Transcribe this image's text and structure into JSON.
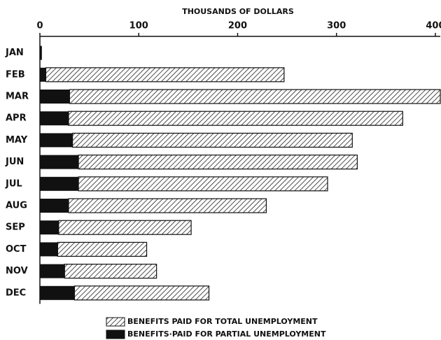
{
  "chart_data": {
    "type": "stacked-barh",
    "title": "THOUSANDS OF DOLLARS",
    "categories": [
      "JAN",
      "FEB",
      "MAR",
      "APR",
      "MAY",
      "JUN",
      "JUL",
      "AUG",
      "SEP",
      "OCT",
      "NOV",
      "DEC"
    ],
    "series": [
      {
        "name": "BENEFITS·PAID FOR PARTIAL UNEMPLOYMENT",
        "color": "#111111",
        "hatch": false,
        "values": [
          2,
          6,
          30,
          29,
          33,
          39,
          39,
          29,
          19,
          18,
          25,
          35
        ]
      },
      {
        "name": "BENEFITS PAID FOR TOTAL UNEMPLOYMENT",
        "color": "#111111",
        "hatch": true,
        "values": [
          0,
          241,
          375,
          338,
          283,
          282,
          252,
          200,
          134,
          90,
          93,
          136
        ]
      }
    ],
    "xlim": [
      0,
      405
    ],
    "xticks": [
      0,
      100,
      200,
      300,
      400
    ],
    "legend": "bottom"
  }
}
